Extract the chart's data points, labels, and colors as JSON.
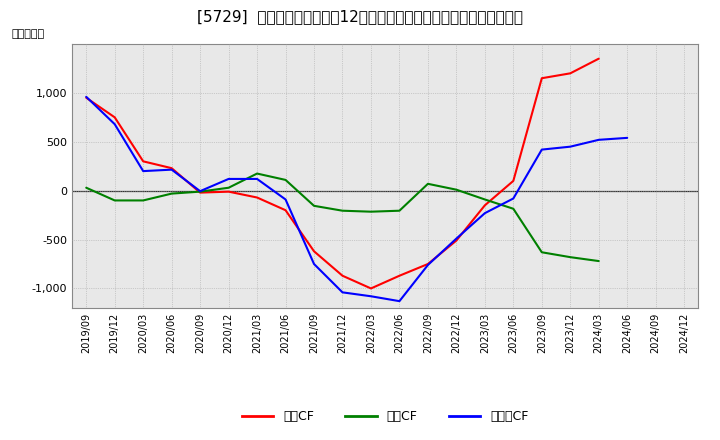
{
  "title": "[5729]  キャッシュフローの12か月移動合計の対前年同期増減額の推移",
  "ylabel": "（百万円）",
  "background_color": "#ffffff",
  "plot_bg_color": "#e8e8e8",
  "grid_color": "#aaaaaa",
  "ylim": [
    -1200,
    1500
  ],
  "yticks": [
    -1000,
    -500,
    0,
    500,
    1000
  ],
  "x_labels": [
    "2019/09",
    "2019/12",
    "2020/03",
    "2020/06",
    "2020/09",
    "2020/12",
    "2021/03",
    "2021/06",
    "2021/09",
    "2021/12",
    "2022/03",
    "2022/06",
    "2022/09",
    "2022/12",
    "2023/03",
    "2023/06",
    "2023/09",
    "2023/12",
    "2024/03",
    "2024/06",
    "2024/09",
    "2024/12"
  ],
  "series": {
    "営業CF": {
      "color": "#ff0000",
      "data": [
        950,
        750,
        300,
        230,
        -20,
        -10,
        -70,
        -200,
        -620,
        -870,
        -1000,
        -870,
        -750,
        -510,
        -150,
        100,
        1150,
        1200,
        1350,
        null,
        null,
        null
      ]
    },
    "投資CF": {
      "color": "#008000",
      "data": [
        30,
        -100,
        -100,
        -30,
        -10,
        30,
        175,
        110,
        -155,
        -205,
        -215,
        -205,
        70,
        10,
        -90,
        -185,
        -630,
        -680,
        -720,
        null,
        null,
        null
      ]
    },
    "フリーCF": {
      "color": "#0000ff",
      "data": [
        960,
        680,
        200,
        215,
        -5,
        120,
        120,
        -90,
        -750,
        -1040,
        -1080,
        -1130,
        -760,
        -490,
        -230,
        -80,
        420,
        450,
        520,
        540,
        null,
        null
      ]
    }
  },
  "legend_entries": [
    "営業CF",
    "投資CF",
    "フリーCF"
  ],
  "legend_colors": [
    "#ff0000",
    "#008000",
    "#0000ff"
  ],
  "title_fontsize": 11,
  "axis_fontsize": 8,
  "legend_fontsize": 9,
  "tick_fontsize": 7
}
